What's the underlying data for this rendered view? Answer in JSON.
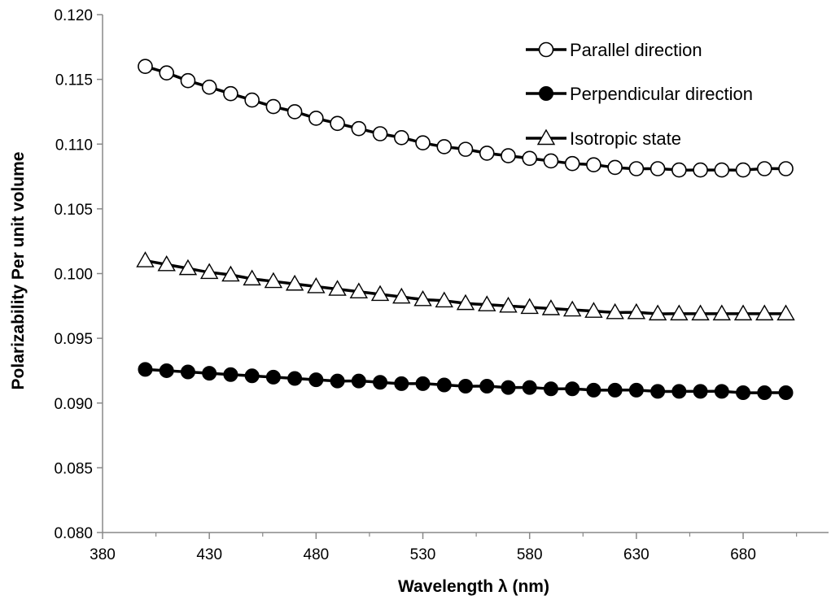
{
  "chart_data": {
    "type": "line",
    "title": "",
    "xlabel": "Wavelength λ (nm)",
    "ylabel": "Polarizability Per unit volume",
    "xlim": [
      380,
      720
    ],
    "ylim": [
      0.08,
      0.12
    ],
    "x_ticks": [
      "380",
      "430",
      "480",
      "530",
      "580",
      "630",
      "680"
    ],
    "y_ticks": [
      "0.080",
      "0.085",
      "0.090",
      "0.095",
      "0.100",
      "0.105",
      "0.110",
      "0.115",
      "0.120"
    ],
    "grid": false,
    "legend_position": "top-right",
    "x": [
      400,
      410,
      420,
      430,
      440,
      450,
      460,
      470,
      480,
      490,
      500,
      510,
      520,
      530,
      540,
      550,
      560,
      570,
      580,
      590,
      600,
      610,
      620,
      630,
      640,
      650,
      660,
      670,
      680,
      690,
      700
    ],
    "series": [
      {
        "name": "Parallel direction",
        "marker": "open-circle",
        "color": "#000000",
        "values": [
          0.116,
          0.1155,
          0.1149,
          0.1144,
          0.1139,
          0.1134,
          0.1129,
          0.1125,
          0.112,
          0.1116,
          0.1112,
          0.1108,
          0.1105,
          0.1101,
          0.1098,
          0.1096,
          0.1093,
          0.1091,
          0.1089,
          0.1087,
          0.1085,
          0.1084,
          0.1082,
          0.1081,
          0.1081,
          0.108,
          0.108,
          0.108,
          0.108,
          0.1081,
          0.1081
        ]
      },
      {
        "name": "Perpendicular direction",
        "marker": "filled-circle",
        "color": "#000000",
        "values": [
          0.0926,
          0.0925,
          0.0924,
          0.0923,
          0.0922,
          0.0921,
          0.092,
          0.0919,
          0.0918,
          0.0917,
          0.0917,
          0.0916,
          0.0915,
          0.0915,
          0.0914,
          0.0913,
          0.0913,
          0.0912,
          0.0912,
          0.0911,
          0.0911,
          0.091,
          0.091,
          0.091,
          0.0909,
          0.0909,
          0.0909,
          0.0909,
          0.0908,
          0.0908,
          0.0908
        ]
      },
      {
        "name": "Isotropic state",
        "marker": "open-triangle",
        "color": "#000000",
        "values": [
          0.101,
          0.1007,
          0.1004,
          0.1001,
          0.0999,
          0.0996,
          0.0994,
          0.0992,
          0.099,
          0.0988,
          0.0986,
          0.0984,
          0.0982,
          0.098,
          0.0979,
          0.0977,
          0.0976,
          0.0975,
          0.0974,
          0.0973,
          0.0972,
          0.0971,
          0.097,
          0.097,
          0.0969,
          0.0969,
          0.0969,
          0.0969,
          0.0969,
          0.0969,
          0.0969
        ]
      }
    ]
  }
}
